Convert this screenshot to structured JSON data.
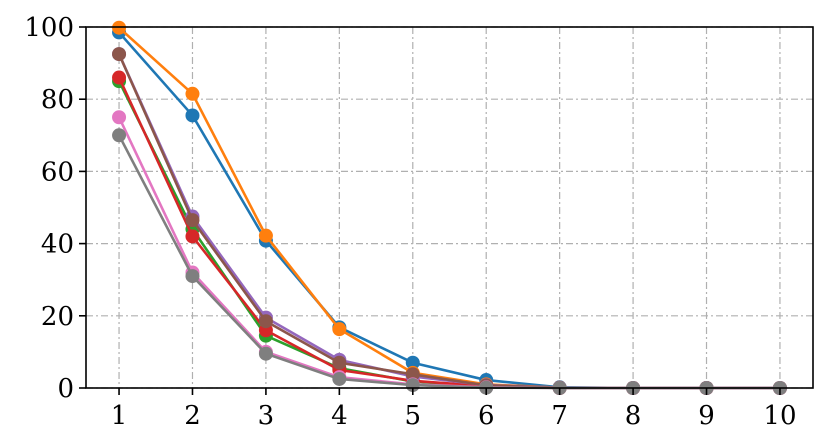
{
  "chart_data": {
    "type": "line",
    "title": "",
    "xlabel": "",
    "ylabel": "",
    "x": [
      1,
      2,
      3,
      4,
      5,
      6,
      7,
      8,
      9,
      10
    ],
    "xlim": [
      0.55,
      10.45
    ],
    "ylim": [
      0,
      100
    ],
    "xticks": [
      1,
      2,
      3,
      4,
      5,
      6,
      7,
      8,
      9,
      10
    ],
    "yticks": [
      0,
      20,
      40,
      60,
      80,
      100
    ],
    "grid": true,
    "grid_style": "dash-dot",
    "legend": "none",
    "series": [
      {
        "color": "#1f77b4",
        "values": [
          98.5,
          75.5,
          40.8,
          16.8,
          7.0,
          2.2,
          0.2,
          0.0,
          0.0,
          0.0
        ]
      },
      {
        "color": "#ff7f0e",
        "values": [
          99.8,
          81.5,
          42.2,
          16.3,
          4.2,
          1.0,
          0.1,
          0.0,
          0.0,
          0.0
        ]
      },
      {
        "color": "#2ca02c",
        "values": [
          85.0,
          44.0,
          14.5,
          5.5,
          1.8,
          0.4,
          0.0,
          0.0,
          0.0,
          0.0
        ]
      },
      {
        "color": "#d62728",
        "values": [
          86.0,
          42.0,
          16.0,
          5.0,
          2.0,
          0.5,
          0.0,
          0.0,
          0.0,
          0.0
        ]
      },
      {
        "color": "#9467bd",
        "values": [
          92.5,
          47.5,
          19.5,
          7.8,
          3.2,
          0.8,
          0.1,
          0.0,
          0.0,
          0.0
        ]
      },
      {
        "color": "#8c564b",
        "values": [
          92.5,
          46.5,
          18.5,
          7.0,
          3.8,
          0.7,
          0.1,
          0.0,
          0.0,
          0.0
        ]
      },
      {
        "color": "#e377c2",
        "values": [
          75.0,
          32.0,
          10.0,
          3.0,
          1.0,
          0.2,
          0.0,
          0.0,
          0.0,
          0.0
        ]
      },
      {
        "color": "#7f7f7f",
        "values": [
          70.0,
          31.0,
          9.5,
          2.5,
          0.8,
          0.1,
          0.0,
          0.0,
          0.0,
          0.0
        ]
      }
    ]
  }
}
